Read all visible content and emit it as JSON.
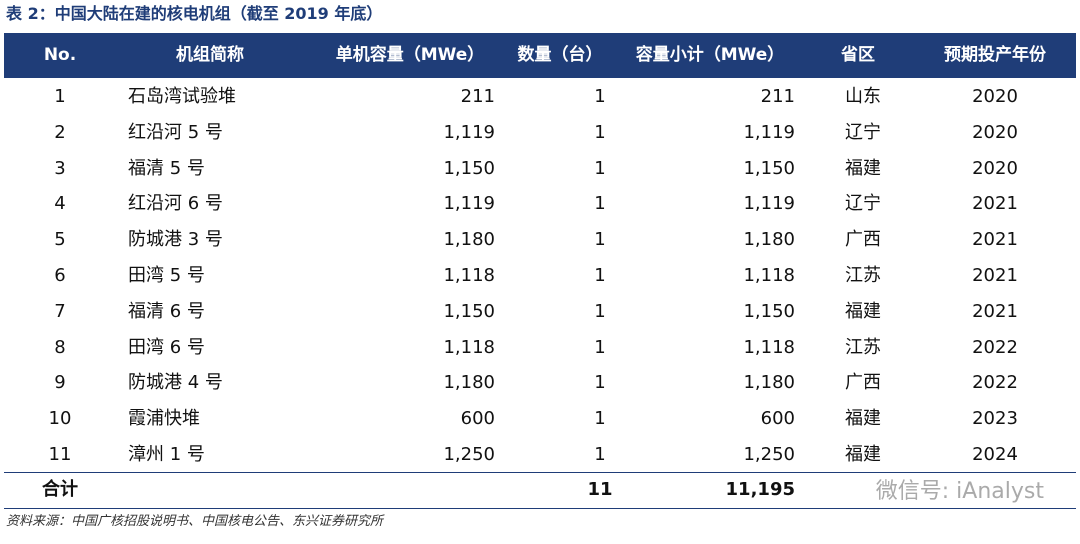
{
  "header": {
    "title": "表 2：中国大陆在建的核电机组（截至 2019 年底）"
  },
  "table": {
    "columns": [
      "No.",
      "机组简称",
      "单机容量（MWe）",
      "数量（台）",
      "容量小计（MWe）",
      "省区",
      "预期投产年份"
    ],
    "rows": [
      [
        "1",
        "石岛湾试验堆",
        "211",
        "1",
        "211",
        "山东",
        "2020"
      ],
      [
        "2",
        "红沿河 5 号",
        "1,119",
        "1",
        "1,119",
        "辽宁",
        "2020"
      ],
      [
        "3",
        "福清 5 号",
        "1,150",
        "1",
        "1,150",
        "福建",
        "2020"
      ],
      [
        "4",
        "红沿河 6 号",
        "1,119",
        "1",
        "1,119",
        "辽宁",
        "2021"
      ],
      [
        "5",
        "防城港 3 号",
        "1,180",
        "1",
        "1,180",
        "广西",
        "2021"
      ],
      [
        "6",
        "田湾 5 号",
        "1,118",
        "1",
        "1,118",
        "江苏",
        "2021"
      ],
      [
        "7",
        "福清 6 号",
        "1,150",
        "1",
        "1,150",
        "福建",
        "2021"
      ],
      [
        "8",
        "田湾 6 号",
        "1,118",
        "1",
        "1,118",
        "江苏",
        "2022"
      ],
      [
        "9",
        "防城港 4 号",
        "1,180",
        "1",
        "1,180",
        "广西",
        "2022"
      ],
      [
        "10",
        "霞浦快堆",
        "600",
        "1",
        "600",
        "福建",
        "2023"
      ],
      [
        "11",
        "漳州 1 号",
        "1,250",
        "1",
        "1,250",
        "福建",
        "2024"
      ]
    ],
    "total": {
      "label": "合计",
      "count": "11",
      "capacity": "11,195"
    }
  },
  "watermark": "微信号: iAnalyst",
  "source": "资料来源：中国广核招股说明书、中国核电公告、东兴证券研究所"
}
